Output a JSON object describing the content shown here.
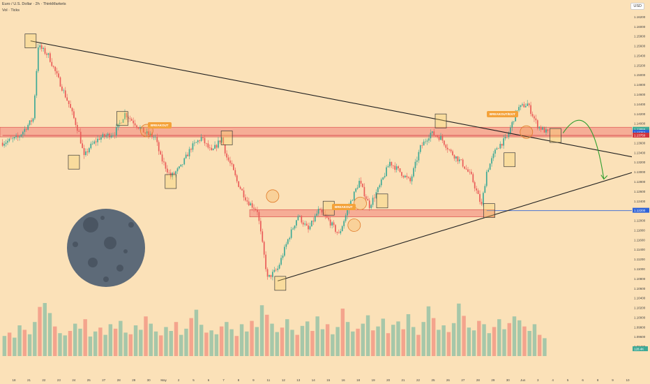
{
  "header": {
    "title": "Euro / U.S. Dollar · 2h · ThinkMarkets",
    "subtitle": "Vol · Ticks"
  },
  "currency_button": "USD",
  "annotations": {
    "breakout1": "BREAKOUT",
    "breakout2": "BREAKOUT",
    "breakout3": "BREAKOUT/EXIT"
  },
  "price_badges": [
    "1.13855",
    "1.13752",
    "1.13750",
    "1.12200"
  ],
  "volume_badge": "128.4K",
  "colors": {
    "background": "#fbe1b8",
    "up": "#3ea996",
    "down": "#ea5b58",
    "zone": "#f2837a",
    "trendline": "#1f1f1f",
    "support_line": "#2f63d8",
    "projection": "#2e9e2e",
    "moon": "#5d6a78"
  },
  "chart_data": {
    "type": "candlestick",
    "title": "Euro / U.S. Dollar · 2h · ThinkMarkets",
    "ylim": [
      1.092,
      1.164
    ],
    "y_ticks": [
      "1.16200",
      "1.16000",
      "1.15800",
      "1.15600",
      "1.15400",
      "1.15200",
      "1.15000",
      "1.14800",
      "1.14600",
      "1.14400",
      "1.14200",
      "1.14000",
      "1.13800",
      "1.13600",
      "1.13400",
      "1.13200",
      "1.13000",
      "1.12800",
      "1.12600",
      "1.12400",
      "1.12200",
      "1.12000",
      "1.11800",
      "1.11600",
      "1.11400",
      "1.11200",
      "1.11000",
      "1.10800",
      "1.10600",
      "1.10400",
      "1.10200",
      "1.10000",
      "1.09800",
      "1.09600",
      "1.09400"
    ],
    "x_ticks": [
      "18",
      "21",
      "22",
      "23",
      "24",
      "25",
      "27",
      "28",
      "29",
      "30",
      "May",
      "2",
      "5",
      "6",
      "7",
      "8",
      "9",
      "11",
      "12",
      "13",
      "14",
      "15",
      "16",
      "18",
      "19",
      "20",
      "21",
      "22",
      "25",
      "26",
      "27",
      "28",
      "29",
      "30",
      "Jun",
      "3",
      "4",
      "5",
      "6",
      "8",
      "9",
      "10"
    ],
    "close_path": [
      [
        0,
        1.136
      ],
      [
        3,
        1.137
      ],
      [
        6,
        1.141
      ],
      [
        7,
        1.156
      ],
      [
        9,
        1.154
      ],
      [
        11,
        1.149
      ],
      [
        13,
        1.144
      ],
      [
        15,
        1.138
      ],
      [
        16,
        1.133
      ],
      [
        17,
        1.135
      ],
      [
        19,
        1.137
      ],
      [
        22,
        1.138
      ],
      [
        24,
        1.142
      ],
      [
        26,
        1.14
      ],
      [
        28,
        1.138
      ],
      [
        30,
        1.137
      ],
      [
        31,
        1.133
      ],
      [
        33,
        1.129
      ],
      [
        35,
        1.131
      ],
      [
        37,
        1.135
      ],
      [
        39,
        1.137
      ],
      [
        41,
        1.134
      ],
      [
        43,
        1.137
      ],
      [
        44,
        1.133
      ],
      [
        45,
        1.131
      ],
      [
        46,
        1.128
      ],
      [
        48,
        1.124
      ],
      [
        50,
        1.122
      ],
      [
        51,
        1.115
      ],
      [
        52,
        1.108
      ],
      [
        54,
        1.11
      ],
      [
        56,
        1.116
      ],
      [
        58,
        1.121
      ],
      [
        60,
        1.118
      ],
      [
        62,
        1.122
      ],
      [
        64,
        1.12
      ],
      [
        66,
        1.117
      ],
      [
        68,
        1.123
      ],
      [
        70,
        1.128
      ],
      [
        72,
        1.123
      ],
      [
        74,
        1.127
      ],
      [
        76,
        1.132
      ],
      [
        78,
        1.13
      ],
      [
        80,
        1.128
      ],
      [
        82,
        1.135
      ],
      [
        84,
        1.138
      ],
      [
        86,
        1.137
      ],
      [
        88,
        1.134
      ],
      [
        90,
        1.132
      ],
      [
        92,
        1.129
      ],
      [
        94,
        1.123
      ],
      [
        95,
        1.13
      ],
      [
        97,
        1.135
      ],
      [
        99,
        1.137
      ],
      [
        101,
        1.143
      ],
      [
        103,
        1.144
      ],
      [
        105,
        1.1395
      ],
      [
        107,
        1.138
      ]
    ],
    "zones": [
      {
        "name": "upper resistance/support",
        "x": [
          0,
          124
        ],
        "y": [
          1.1372,
          1.1392
        ]
      },
      {
        "name": "lower support",
        "x": [
          49,
          97
        ],
        "y": [
          1.1207,
          1.1222
        ]
      }
    ],
    "trendlines": [
      {
        "name": "descending",
        "from": [
          5.5,
          1.157
        ],
        "to": [
          124,
          1.133
        ]
      },
      {
        "name": "ascending",
        "from": [
          54,
          1.1075
        ],
        "to": [
          124,
          1.13
        ]
      }
    ],
    "horizontal_lines": [
      {
        "value": 1.1375,
        "x_from": 0,
        "color": "#d0343d"
      },
      {
        "value": 1.122,
        "x_from": 95,
        "color": "#2f63d8"
      }
    ],
    "projection_arrow": {
      "from": [
        110,
        1.138
      ],
      "via": [
        114,
        1.142
      ],
      "to": [
        118,
        1.1285
      ]
    },
    "boxes": [
      [
        5.5,
        1.157
      ],
      [
        14,
        1.132
      ],
      [
        23.5,
        1.141
      ],
      [
        33,
        1.128
      ],
      [
        44,
        1.137
      ],
      [
        54.5,
        1.107
      ],
      [
        64,
        1.1225
      ],
      [
        74.5,
        1.124
      ],
      [
        86,
        1.1405
      ],
      [
        99.5,
        1.1325
      ],
      [
        95.5,
        1.122
      ],
      [
        108.5,
        1.1375
      ]
    ],
    "circles": [
      [
        28.3,
        1.1385
      ],
      [
        53,
        1.125
      ],
      [
        70.2,
        1.1235
      ],
      [
        69,
        1.119
      ],
      [
        102.8,
        1.1382
      ]
    ],
    "volume": {
      "ymax": 1.0,
      "values": [
        0.36,
        0.42,
        0.33,
        0.55,
        0.47,
        0.39,
        0.61,
        0.88,
        0.95,
        0.77,
        0.53,
        0.41,
        0.37,
        0.45,
        0.58,
        0.49,
        0.66,
        0.35,
        0.44,
        0.51,
        0.38,
        0.57,
        0.49,
        0.63,
        0.42,
        0.39,
        0.55,
        0.47,
        0.71,
        0.58,
        0.44,
        0.37,
        0.52,
        0.45,
        0.61,
        0.38,
        0.49,
        0.68,
        0.83,
        0.56,
        0.42,
        0.46,
        0.39,
        0.53,
        0.61,
        0.48,
        0.36,
        0.57,
        0.44,
        0.63,
        0.52,
        0.91,
        0.74,
        0.58,
        0.43,
        0.51,
        0.66,
        0.47,
        0.38,
        0.54,
        0.62,
        0.45,
        0.71,
        0.48,
        0.57,
        0.39,
        0.52,
        0.85,
        0.61,
        0.44,
        0.49,
        0.58,
        0.73,
        0.46,
        0.53,
        0.67,
        0.41,
        0.56,
        0.62,
        0.48,
        0.75,
        0.52,
        0.38,
        0.61,
        0.89,
        0.68,
        0.47,
        0.55,
        0.43,
        0.59,
        0.94,
        0.72,
        0.51,
        0.46,
        0.63,
        0.57,
        0.41,
        0.52,
        0.66,
        0.48,
        0.59,
        0.71,
        0.64,
        0.53,
        0.45,
        0.57,
        0.38,
        0.32
      ]
    }
  }
}
